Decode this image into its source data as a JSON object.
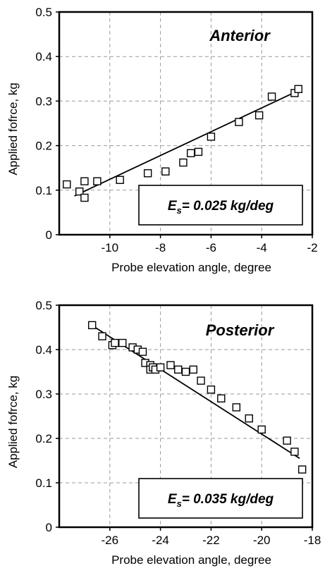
{
  "chart_data": [
    {
      "type": "scatter",
      "title": "Anterior",
      "annotation": {
        "prefix": "E",
        "subscript": "s",
        "text": "= 0.025 kg/deg"
      },
      "xlabel": "Probe elevation angle, degree",
      "ylabel": "Applied fofrce, kg",
      "xlim": [
        -12,
        -2
      ],
      "ylim": [
        0,
        0.5
      ],
      "xticks": [
        -10,
        -8,
        -6,
        -4,
        -2
      ],
      "yticks": [
        0,
        0.1,
        0.2,
        0.3,
        0.4,
        0.5
      ],
      "xtick_labels": [
        "-10",
        "-8",
        "-6",
        "-4",
        "-2"
      ],
      "ytick_labels": [
        "0",
        "0.1",
        "0.2",
        "0.3",
        "0.4",
        "0.5"
      ],
      "grid": true,
      "x": [
        -11.7,
        -11.2,
        -11.0,
        -11.0,
        -10.5,
        -9.6,
        -8.5,
        -7.8,
        -7.1,
        -6.8,
        -6.5,
        -6.0,
        -4.9,
        -4.1,
        -3.6,
        -2.7,
        -2.55
      ],
      "y": [
        0.113,
        0.097,
        0.083,
        0.12,
        0.12,
        0.123,
        0.138,
        0.142,
        0.162,
        0.183,
        0.186,
        0.22,
        0.253,
        0.268,
        0.31,
        0.318,
        0.327
      ],
      "fit": {
        "x": [
          -11.4,
          -2.6
        ],
        "y": [
          0.087,
          0.322
        ]
      }
    },
    {
      "type": "scatter",
      "title": "Posterior",
      "annotation": {
        "prefix": "E",
        "subscript": "s",
        "text": "= 0.035 kg/deg"
      },
      "xlabel": "Probe elevation angle, degree",
      "ylabel": "Applied fofrce, kg",
      "xlim": [
        -28,
        -18
      ],
      "ylim": [
        0,
        0.5
      ],
      "xticks": [
        -26,
        -24,
        -22,
        -20,
        -18
      ],
      "yticks": [
        0,
        0.1,
        0.2,
        0.3,
        0.4,
        0.5
      ],
      "xtick_labels": [
        "-26",
        "-24",
        "-22",
        "-20",
        "-18"
      ],
      "ytick_labels": [
        "0",
        "0.1",
        "0.2",
        "0.3",
        "0.4",
        "0.5"
      ],
      "grid": true,
      "x": [
        -26.7,
        -26.3,
        -25.9,
        -25.8,
        -25.5,
        -25.1,
        -24.9,
        -24.7,
        -24.6,
        -24.4,
        -24.4,
        -24.3,
        -24.2,
        -24.0,
        -23.6,
        -23.3,
        -23.0,
        -22.7,
        -22.4,
        -22.0,
        -21.6,
        -21.0,
        -20.5,
        -20.0,
        -19.0,
        -18.7,
        -18.4
      ],
      "y": [
        0.455,
        0.43,
        0.41,
        0.415,
        0.415,
        0.405,
        0.4,
        0.395,
        0.37,
        0.365,
        0.355,
        0.36,
        0.355,
        0.36,
        0.365,
        0.355,
        0.35,
        0.355,
        0.33,
        0.31,
        0.29,
        0.27,
        0.245,
        0.22,
        0.195,
        0.17,
        0.13
      ],
      "fit": {
        "x": [
          -26.8,
          -18.5
        ],
        "y": [
          0.458,
          0.155
        ]
      }
    }
  ]
}
